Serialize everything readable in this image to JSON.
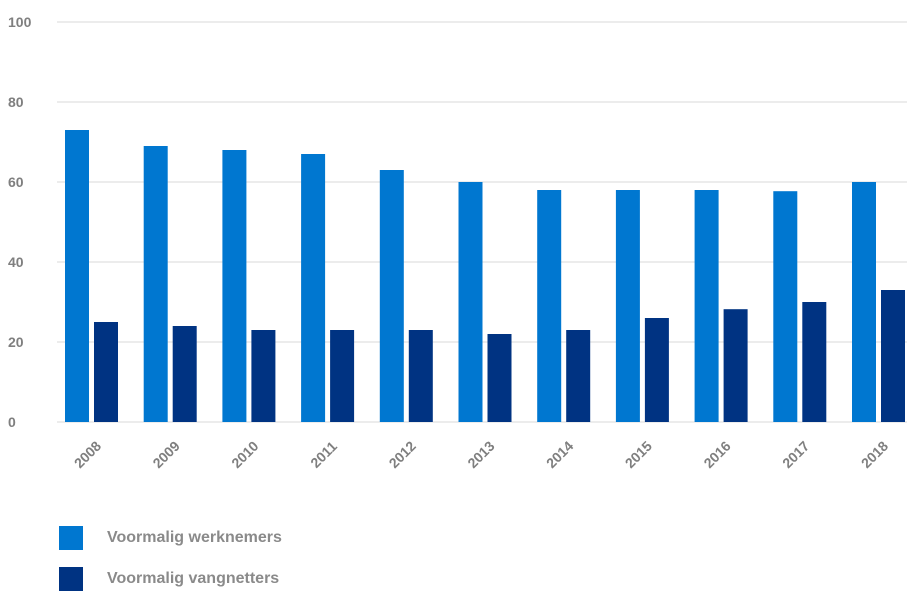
{
  "chart_data": {
    "type": "bar",
    "categories": [
      "2008",
      "2009",
      "2010",
      "2011",
      "2012",
      "2013",
      "2014",
      "2015",
      "2016",
      "2017",
      "2018"
    ],
    "series": [
      {
        "name": "Voormalig werknemers",
        "color": "#0077d0",
        "values": [
          73,
          69,
          68,
          67,
          63,
          60,
          58,
          58,
          58,
          57.7,
          60
        ]
      },
      {
        "name": "Voormalig vangnetters",
        "color": "#003382",
        "values": [
          25,
          24,
          23,
          23,
          23,
          22,
          23,
          26,
          28.2,
          30,
          33
        ]
      }
    ],
    "yticks": [
      "0",
      "20",
      "40",
      "60",
      "80",
      "100"
    ],
    "ylim": [
      0,
      100
    ],
    "grid": true,
    "legend_position": "bottom-left",
    "title": "",
    "xlabel": "",
    "ylabel": ""
  }
}
